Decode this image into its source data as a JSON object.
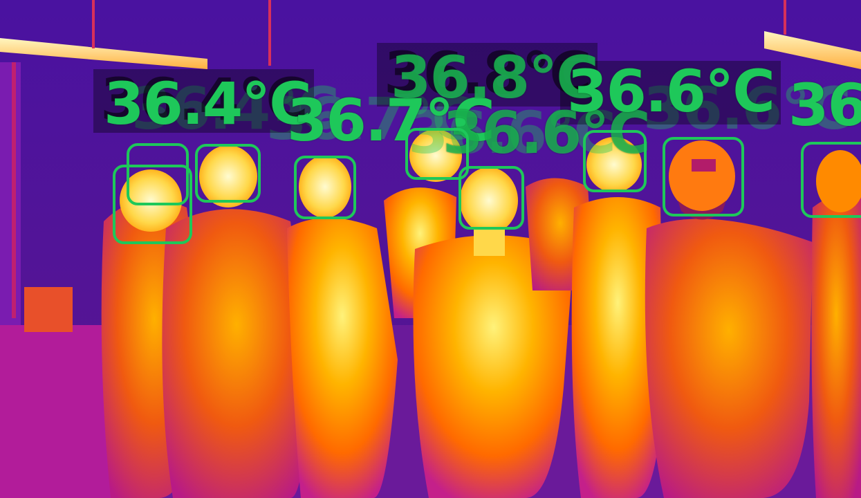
{
  "scene": {
    "description_free": true
  },
  "colors": {
    "overlay_green": "#1ec85a",
    "background_cold": "#3a0f8a",
    "body_hot": "#ff8a00",
    "body_hottest": "#fff27a",
    "mid_magenta": "#c4208a"
  },
  "readings": [
    {
      "label": "36.4°C"
    },
    {
      "label": "36.7°C"
    },
    {
      "label": "36.8°C"
    },
    {
      "label": "36.6°C"
    },
    {
      "label": "36.6°C"
    },
    {
      "label": "36"
    }
  ],
  "faces": [
    {
      "name": "face-1"
    },
    {
      "name": "face-2"
    },
    {
      "name": "face-3"
    },
    {
      "name": "face-4"
    },
    {
      "name": "face-5"
    },
    {
      "name": "face-6"
    },
    {
      "name": "face-7"
    },
    {
      "name": "face-8"
    },
    {
      "name": "face-9"
    }
  ]
}
